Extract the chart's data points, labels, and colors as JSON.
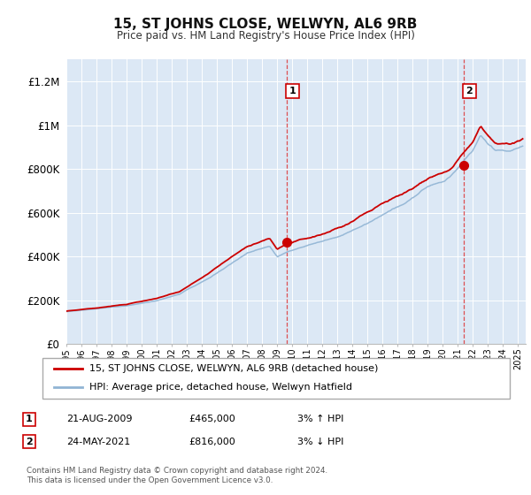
{
  "title": "15, ST JOHNS CLOSE, WELWYN, AL6 9RB",
  "subtitle": "Price paid vs. HM Land Registry's House Price Index (HPI)",
  "ylim": [
    0,
    1300000
  ],
  "xlim_start": 1995.0,
  "xlim_end": 2025.5,
  "plot_bg_color": "#dce8f5",
  "grid_color": "#ffffff",
  "hpi_line_color": "#90b4d4",
  "price_line_color": "#cc0000",
  "sale1_x": 2009.64,
  "sale1_y": 465000,
  "sale1_label": "1",
  "sale1_date": "21-AUG-2009",
  "sale1_price": "£465,000",
  "sale1_hpi": "3% ↑ HPI",
  "sale2_x": 2021.38,
  "sale2_y": 816000,
  "sale2_label": "2",
  "sale2_date": "24-MAY-2021",
  "sale2_price": "£816,000",
  "sale2_hpi": "3% ↓ HPI",
  "legend_label1": "15, ST JOHNS CLOSE, WELWYN, AL6 9RB (detached house)",
  "legend_label2": "HPI: Average price, detached house, Welwyn Hatfield",
  "footnote": "Contains HM Land Registry data © Crown copyright and database right 2024.\nThis data is licensed under the Open Government Licence v3.0.",
  "ytick_labels": [
    "£0",
    "£200K",
    "£400K",
    "£600K",
    "£800K",
    "£1M",
    "£1.2M"
  ],
  "ytick_values": [
    0,
    200000,
    400000,
    600000,
    800000,
    1000000,
    1200000
  ]
}
